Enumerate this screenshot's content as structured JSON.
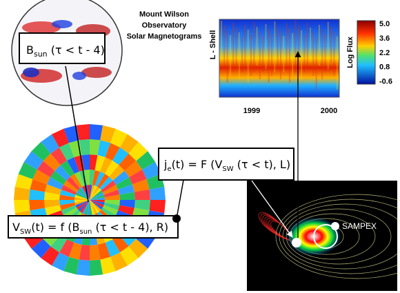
{
  "observatory": {
    "line1": "Mount Wilson",
    "line2": "Observatory",
    "line3": "Solar Magnetograms"
  },
  "sun_label": {
    "main": "B",
    "sub": "sun",
    "rest": " (τ < t - 4)"
  },
  "wind_formula": {
    "p1": "V",
    "p1_sub": "SW",
    "p2": "(t) = f (B",
    "p2_sub": "sun",
    "p3": " (τ < t - 4), R)"
  },
  "flux_formula": {
    "p1": "j",
    "p1_sub": "e",
    "p2": "(t) = F (V",
    "p2_sub": "SW",
    "p3": " (τ < t), L)"
  },
  "flux_plot": {
    "y_label": "L - Shell",
    "colorbar_title": "Log Flux",
    "colorbar_labels": [
      "5.0",
      "3.6",
      "2.2",
      "0.8",
      "-0.6"
    ],
    "x_labels": [
      "1999",
      "2000"
    ]
  },
  "magnetosphere": {
    "satellite": "SAMPEX"
  }
}
